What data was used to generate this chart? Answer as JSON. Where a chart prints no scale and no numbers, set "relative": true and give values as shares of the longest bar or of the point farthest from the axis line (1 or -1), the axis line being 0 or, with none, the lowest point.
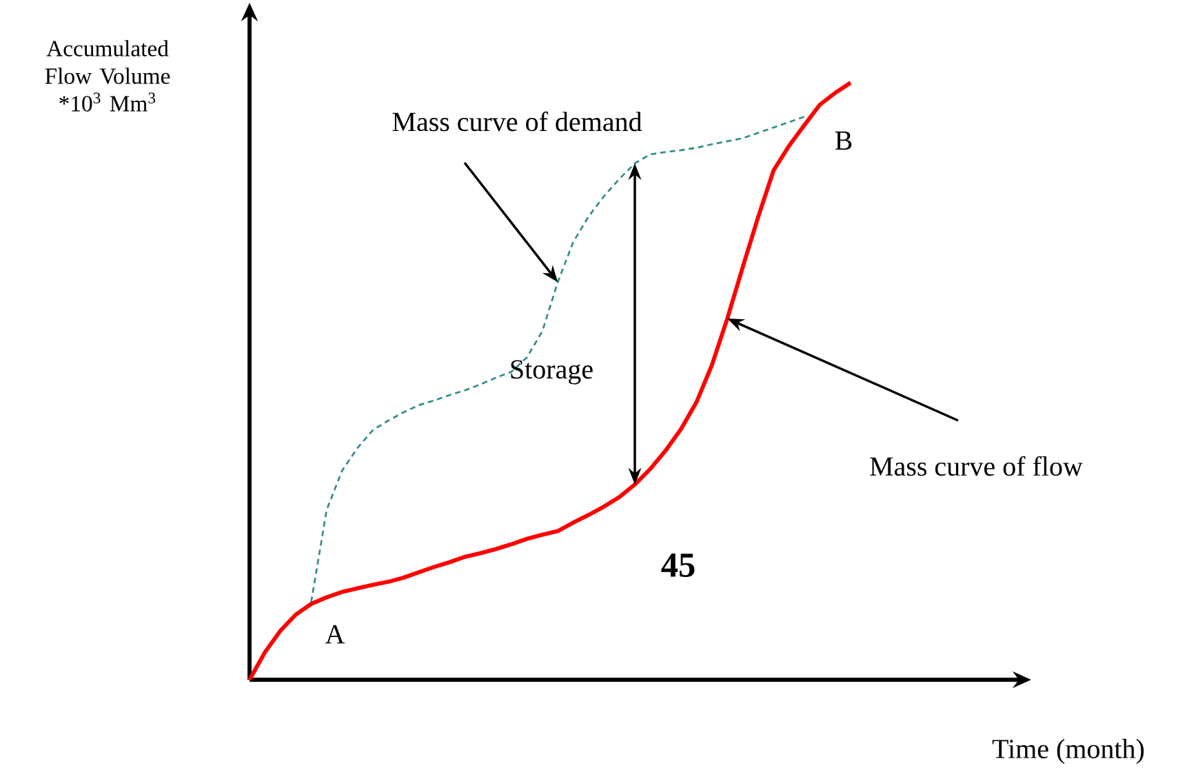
{
  "chart_data": {
    "type": "line",
    "relative": true,
    "ylabel": "Accumulated Flow Volume *10$^{3}$ Mm$^{3}$",
    "categories": [
      null,
      null,
      null,
      null,
      null,
      null,
      null,
      null,
      null,
      null,
      null,
      null,
      null,
      null,
      null,
      null,
      null,
      null,
      null,
      null,
      null,
      null,
      null,
      null,
      null,
      null,
      null,
      null,
      null,
      null,
      null,
      null,
      null,
      null,
      null,
      null,
      null,
      null,
      null,
      null
    ],
    "series": [
      {
        "color": "#ff0000",
        "line_style": "solid",
        "values": [
          0,
          0.046,
          0.082,
          0.109,
          0.127,
          0.138,
          0.147,
          0.153,
          0.159,
          0.164,
          0.171,
          0.18,
          0.189,
          0.197,
          0.206,
          0.212,
          0.219,
          0.227,
          0.236,
          0.243,
          0.249,
          0.263,
          0.276,
          0.29,
          0.306,
          0.327,
          0.353,
          0.384,
          0.42,
          0.465,
          0.527,
          0.605,
          0.691,
          0.775,
          0.853,
          0.894,
          0.929,
          0.963,
          0.983,
          1.0
        ]
      },
      {
        "color": "#2e8b8b",
        "line_style": "dashed",
        "values": [
          null,
          null,
          null,
          null,
          0.13,
          0.284,
          0.35,
          0.388,
          0.418,
          0.434,
          0.448,
          0.46,
          0.468,
          0.477,
          0.485,
          0.495,
          0.506,
          0.516,
          0.54,
          0.584,
          0.666,
          0.733,
          0.776,
          0.81,
          0.839,
          0.865,
          0.88,
          0.884,
          0.887,
          0.891,
          0.897,
          0.902,
          0.907,
          0.916,
          0.925,
          0.934,
          0.943,
          null,
          null,
          null
        ]
      }
    ],
    "annotations": [
      "Mass curve of demand",
      "Mass curve of flow",
      "Storage",
      "A",
      "B",
      "45",
      "Time (month)"
    ]
  }
}
